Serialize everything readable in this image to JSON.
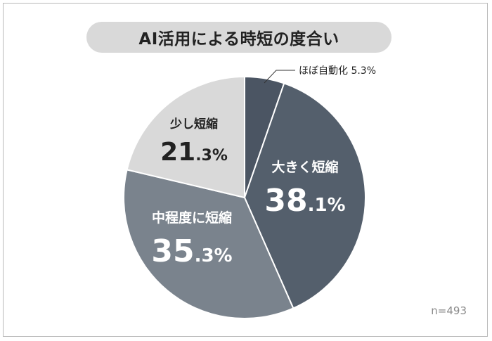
{
  "title": "AI活用による時短の度合い",
  "note": "n=493",
  "chart_data": {
    "type": "pie",
    "title": "AI活用による時短の度合い",
    "slices": [
      {
        "label": "ほぼ自動化",
        "value": 5.3,
        "int": "5",
        "dec": ".3%",
        "color": "#4b5563",
        "text_color": "#222222"
      },
      {
        "label": "大きく短縮",
        "value": 38.1,
        "int": "38",
        "dec": ".1%",
        "color": "#545f6c",
        "text_color": "#ffffff"
      },
      {
        "label": "中程度に短縮",
        "value": 35.3,
        "int": "35",
        "dec": ".3%",
        "color": "#7a838d",
        "text_color": "#ffffff"
      },
      {
        "label": "少し短縮",
        "value": 21.3,
        "int": "21",
        "dec": ".3%",
        "color": "#d9d9d9",
        "text_color": "#222222"
      }
    ],
    "start": "12 o'clock",
    "direction": "clockwise"
  }
}
